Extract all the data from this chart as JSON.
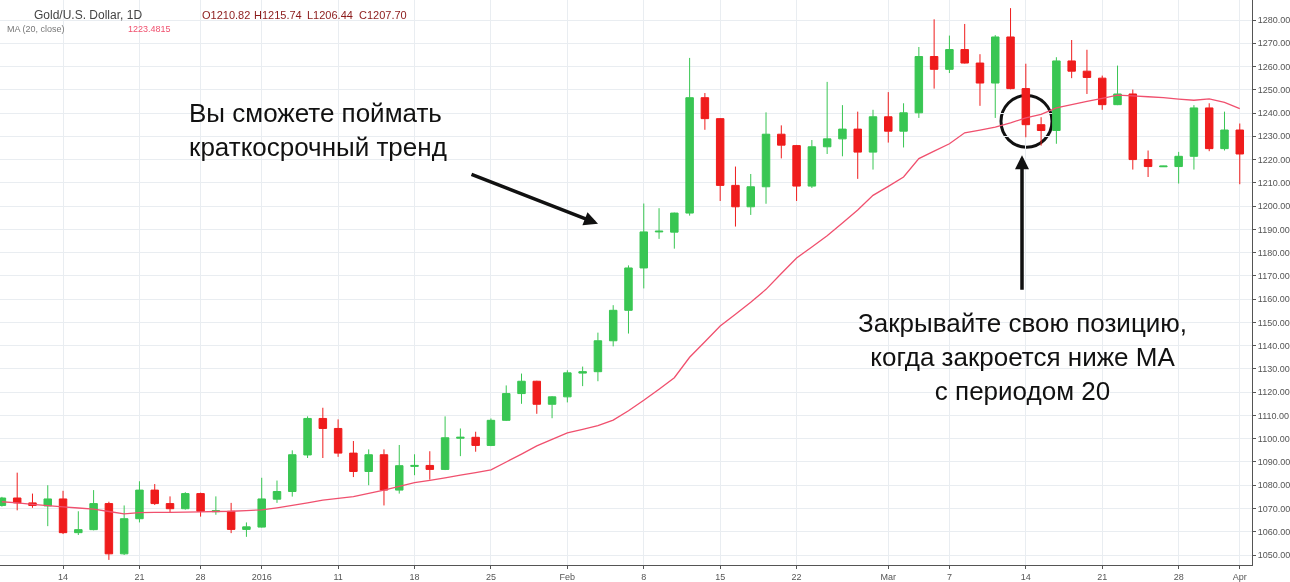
{
  "chart_data": {
    "type": "candlestick",
    "categories": [
      null,
      null,
      null,
      null,
      "14",
      null,
      null,
      null,
      null,
      "21",
      null,
      null,
      null,
      "28",
      null,
      null,
      null,
      "2016",
      null,
      null,
      null,
      null,
      "11",
      null,
      null,
      null,
      null,
      "18",
      null,
      null,
      null,
      null,
      "25",
      null,
      null,
      null,
      null,
      "Feb",
      null,
      null,
      null,
      null,
      "8",
      null,
      null,
      null,
      null,
      "15",
      null,
      null,
      null,
      null,
      "22",
      null,
      null,
      null,
      null,
      null,
      "Mar",
      null,
      null,
      null,
      "7",
      null,
      null,
      null,
      null,
      "14",
      null,
      null,
      null,
      null,
      "21",
      null,
      null,
      null,
      null,
      "28",
      null,
      null,
      null,
      "Apr"
    ],
    "series": [
      {
        "ohlc": [
          [
            1071.3,
            1075.0,
            1070.8,
            1074.5
          ],
          [
            1074.5,
            1085.4,
            1069.2,
            1072.4
          ],
          [
            1072.4,
            1076.4,
            1070.3,
            1071.3
          ],
          [
            1071.1,
            1080.0,
            1062.4,
            1074.1
          ],
          [
            1074.1,
            1077.6,
            1059.0,
            1059.6
          ],
          [
            1059.6,
            1068.8,
            1058.6,
            1060.9
          ],
          [
            1060.9,
            1077.9,
            1060.6,
            1072.1
          ],
          [
            1072.1,
            1072.9,
            1047.9,
            1050.5
          ],
          [
            1050.5,
            1071.3,
            1050.0,
            1065.6
          ],
          [
            1065.6,
            1081.7,
            1064.0,
            1077.9
          ],
          [
            1077.9,
            1080.5,
            1071.5,
            1072.1
          ],
          [
            1072.1,
            1075.2,
            1068.4,
            1069.9
          ],
          [
            1069.9,
            1077.0,
            1069.5,
            1076.4
          ],
          [
            1076.4,
            1076.8,
            1066.5,
            1068.8
          ],
          [
            1068.6,
            1075.2,
            1067.3,
            1069.0
          ],
          [
            1068.8,
            1072.4,
            1059.4,
            1061.0
          ],
          [
            1061.0,
            1064.0,
            1057.8,
            1062.1
          ],
          [
            1062.0,
            1083.2,
            1061.8,
            1074.1
          ],
          [
            1074.0,
            1082.0,
            1072.4,
            1077.3
          ],
          [
            1077.3,
            1095.0,
            1075.1,
            1093.1
          ],
          [
            1093.0,
            1109.6,
            1091.7,
            1108.7
          ],
          [
            1108.7,
            1113.3,
            1091.7,
            1104.4
          ],
          [
            1104.4,
            1108.3,
            1092.2,
            1093.8
          ],
          [
            1093.8,
            1099.0,
            1083.5,
            1085.9
          ],
          [
            1085.9,
            1095.4,
            1080.0,
            1093.1
          ],
          [
            1093.1,
            1095.4,
            1071.3,
            1077.9
          ],
          [
            1077.9,
            1097.3,
            1076.4,
            1088.4
          ],
          [
            1088.1,
            1093.3,
            1084.3,
            1088.5
          ],
          [
            1088.5,
            1094.6,
            1082.4,
            1086.8
          ],
          [
            1086.8,
            1109.6,
            1086.5,
            1100.4
          ],
          [
            1100.2,
            1104.4,
            1092.5,
            1100.6
          ],
          [
            1100.6,
            1103.0,
            1094.4,
            1097.1
          ],
          [
            1097.1,
            1108.7,
            1096.8,
            1107.9
          ],
          [
            1107.9,
            1122.9,
            1107.6,
            1119.4
          ],
          [
            1119.4,
            1128.0,
            1115.0,
            1124.7
          ],
          [
            1124.7,
            1124.9,
            1110.7,
            1114.8
          ],
          [
            1114.8,
            1118.3,
            1108.8,
            1118.0
          ],
          [
            1118.0,
            1129.4,
            1115.6,
            1128.3
          ],
          [
            1128.2,
            1131.0,
            1122.6,
            1128.8
          ],
          [
            1128.8,
            1145.6,
            1124.7,
            1142.1
          ],
          [
            1142.1,
            1157.4,
            1139.7,
            1155.2
          ],
          [
            1155.2,
            1174.5,
            1145.2,
            1173.4
          ],
          [
            1173.4,
            1201.1,
            1164.6,
            1188.9
          ],
          [
            1188.9,
            1199.1,
            1185.9,
            1189.2
          ],
          [
            1188.8,
            1197.2,
            1181.7,
            1197.0
          ],
          [
            1197.0,
            1263.7,
            1195.9,
            1246.6
          ],
          [
            1246.6,
            1248.6,
            1232.8,
            1237.6
          ],
          [
            1237.6,
            1237.8,
            1202.2,
            1208.9
          ],
          [
            1208.9,
            1217.0,
            1191.2,
            1199.7
          ],
          [
            1199.7,
            1213.8,
            1196.2,
            1208.3
          ],
          [
            1208.3,
            1240.3,
            1201.0,
            1230.9
          ],
          [
            1230.9,
            1234.7,
            1220.5,
            1226.2
          ],
          [
            1226.0,
            1226.3,
            1202.2,
            1208.6
          ],
          [
            1208.6,
            1228.4,
            1207.8,
            1225.5
          ],
          [
            1225.5,
            1253.4,
            1222.4,
            1228.9
          ],
          [
            1228.9,
            1243.4,
            1221.4,
            1233.1
          ],
          [
            1233.1,
            1240.6,
            1211.7,
            1223.2
          ],
          [
            1223.2,
            1241.4,
            1215.7,
            1238.4
          ],
          [
            1238.4,
            1249.0,
            1227.3,
            1232.2
          ],
          [
            1232.2,
            1244.2,
            1225.2,
            1240.1
          ],
          [
            1240.1,
            1268.4,
            1237.9,
            1264.3
          ],
          [
            1264.3,
            1280.3,
            1250.5,
            1258.8
          ],
          [
            1258.8,
            1273.3,
            1257.2,
            1267.3
          ],
          [
            1267.3,
            1278.3,
            1261.3,
            1261.5
          ],
          [
            1261.5,
            1265.3,
            1243.1,
            1252.9
          ],
          [
            1252.9,
            1273.5,
            1237.9,
            1272.7
          ],
          [
            1272.7,
            1285.1,
            1250.2,
            1250.5
          ],
          [
            1250.5,
            1261.2,
            1229.6,
            1235.0
          ],
          [
            1235.0,
            1238.2,
            1226.0,
            1232.5
          ],
          [
            1232.5,
            1264.0,
            1226.8,
            1262.4
          ],
          [
            1262.4,
            1271.4,
            1255.0,
            1258.0
          ],
          [
            1258.0,
            1267.2,
            1248.2,
            1255.3
          ],
          [
            1255.0,
            1256.1,
            1241.4,
            1243.6
          ],
          [
            1243.6,
            1260.4,
            1243.4,
            1248.2
          ],
          [
            1248.2,
            1250.1,
            1215.7,
            1220.0
          ],
          [
            1220.0,
            1223.9,
            1212.5,
            1217.0
          ],
          [
            1216.9,
            1217.3,
            1216.8,
            1217.2
          ],
          [
            1217.0,
            1223.3,
            1209.7,
            1221.4
          ],
          [
            1221.4,
            1243.4,
            1215.7,
            1242.2
          ],
          [
            1242.2,
            1244.2,
            1223.6,
            1224.7
          ],
          [
            1224.7,
            1240.6,
            1223.9,
            1232.7
          ],
          [
            1232.7,
            1235.5,
            1209.4,
            1222.4
          ]
        ],
        "colors": [
          "#39c653",
          "#ef1c1c",
          "#ef1c1c",
          "#39c653",
          "#ef1c1c",
          "#39c653",
          "#39c653",
          "#ef1c1c",
          "#39c653",
          "#39c653",
          "#ef1c1c",
          "#ef1c1c",
          "#39c653",
          "#ef1c1c",
          "#39c653",
          "#ef1c1c",
          "#39c653",
          "#39c653",
          "#39c653",
          "#39c653",
          "#39c653",
          "#ef1c1c",
          "#ef1c1c",
          "#ef1c1c",
          "#39c653",
          "#ef1c1c",
          "#39c653",
          "#39c653",
          "#ef1c1c",
          "#39c653",
          "#39c653",
          "#ef1c1c",
          "#39c653",
          "#39c653",
          "#39c653",
          "#ef1c1c",
          "#39c653",
          "#39c653",
          "#39c653",
          "#39c653",
          "#39c653",
          "#39c653",
          "#39c653",
          "#39c653",
          "#39c653",
          "#39c653",
          "#ef1c1c",
          "#ef1c1c",
          "#ef1c1c",
          "#39c653",
          "#39c653",
          "#ef1c1c",
          "#ef1c1c",
          "#39c653",
          "#39c653",
          "#39c653",
          "#ef1c1c",
          "#39c653",
          "#ef1c1c",
          "#39c653",
          "#39c653",
          "#ef1c1c",
          "#39c653",
          "#ef1c1c",
          "#ef1c1c",
          "#39c653",
          "#ef1c1c",
          "#ef1c1c",
          "#ef1c1c",
          "#39c653",
          "#ef1c1c",
          "#ef1c1c",
          "#ef1c1c",
          "#39c653",
          "#ef1c1c",
          "#ef1c1c",
          "#39c653",
          "#39c653",
          "#39c653",
          "#ef1c1c",
          "#39c653",
          "#ef1c1c"
        ]
      },
      {
        "type": "line",
        "color": "#f0506e",
        "values": [
          1072.9,
          1072.4,
          1071.8,
          1071.2,
          1070.7,
          1070.2,
          1069.7,
          1068.7,
          1067.7,
          1068.2,
          1068.3,
          1068.3,
          1068.4,
          1068.5,
          1068.7,
          1068.8,
          1069.1,
          1069.4,
          1070.3,
          1071.3,
          1072.4,
          1073.6,
          1074.3,
          1075.1,
          1076.5,
          1077.9,
          1079.5,
          1081.1,
          1082.1,
          1083.2,
          1084.3,
          1085.4,
          1086.6,
          1090.0,
          1093.4,
          1096.9,
          1099.7,
          1102.5,
          1104.0,
          1105.6,
          1108.0,
          1112.0,
          1116.5,
          1121.3,
          1126.2,
          1135.0,
          1141.7,
          1148.4,
          1153.5,
          1158.7,
          1164.2,
          1171.0,
          1177.7,
          1182.4,
          1187.2,
          1192.7,
          1198.3,
          1204.6,
          1208.5,
          1212.5,
          1220.4,
          1223.6,
          1226.8,
          1231.5,
          1232.7,
          1233.9,
          1235.8,
          1237.9,
          1239.4,
          1242.2,
          1243.6,
          1245.0,
          1246.3,
          1247.7,
          1247.4,
          1247.0,
          1246.6,
          1246.0,
          1245.5,
          1246.1,
          1244.6,
          1241.9
        ]
      }
    ],
    "ylim": [
      1045.7,
      1288.6
    ],
    "yticks": [
      {
        "value": 1050,
        "label": "1050.00"
      },
      {
        "value": 1060,
        "label": "1060.00"
      },
      {
        "value": 1070,
        "label": "1070.00"
      },
      {
        "value": 1080,
        "label": "1080.00"
      },
      {
        "value": 1090,
        "label": "1090.00"
      },
      {
        "value": 1100,
        "label": "1100.00"
      },
      {
        "value": 1110,
        "label": "1110.00"
      },
      {
        "value": 1120,
        "label": "1120.00"
      },
      {
        "value": 1130,
        "label": "1130.00"
      },
      {
        "value": 1140,
        "label": "1140.00"
      },
      {
        "value": 1150,
        "label": "1150.00"
      },
      {
        "value": 1160,
        "label": "1160.00"
      },
      {
        "value": 1170,
        "label": "1170.00"
      },
      {
        "value": 1180,
        "label": "1180.00"
      },
      {
        "value": 1190,
        "label": "1190.00"
      },
      {
        "value": 1200,
        "label": "1200.00"
      },
      {
        "value": 1210,
        "label": "1210.00"
      },
      {
        "value": 1220,
        "label": "1220.00"
      },
      {
        "value": 1230,
        "label": "1230.00"
      },
      {
        "value": 1240,
        "label": "1240.00"
      },
      {
        "value": 1250,
        "label": "1250.00"
      },
      {
        "value": 1260,
        "label": "1260.00"
      },
      {
        "value": 1270,
        "label": "1270.00"
      },
      {
        "value": 1280,
        "label": "1280.00"
      }
    ],
    "grid": true,
    "annotations": [
      "Gold/U.S. Dollar, 1D",
      "O1210.82",
      "H1215.74",
      "L1206.44",
      "C1207.70",
      "MA (20, close)",
      "1223.4815",
      "Вы сможете поймать\nкраткосрочный тренд",
      "Закрывайте свою позицию,\nкогда закроется ниже МА\nс периодом 20"
    ]
  }
}
